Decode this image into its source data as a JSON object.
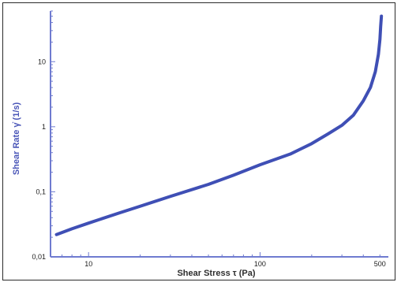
{
  "chart_data": {
    "type": "line",
    "title": "",
    "xlabel": "Shear  Stress τ (Pa)",
    "ylabel": "Shear Rate γ̇ (1/s)",
    "x_scale": "log",
    "y_scale": "log",
    "xlim": [
      6,
      560
    ],
    "ylim": [
      0.01,
      60
    ],
    "x_ticks": [
      {
        "value": 10,
        "label": "10"
      },
      {
        "value": 100,
        "label": "100"
      },
      {
        "value": 500,
        "label": "500"
      }
    ],
    "y_ticks": [
      {
        "value": 0.01,
        "label": "0,01"
      },
      {
        "value": 0.1,
        "label": "0,1"
      },
      {
        "value": 1,
        "label": "1"
      },
      {
        "value": 10,
        "label": "10"
      }
    ],
    "grid": false,
    "legend": "none",
    "colors": {
      "line": "#3f4fb5",
      "axis": "#6f7bd0",
      "ylabel": "#4a56b8"
    },
    "series": [
      {
        "x": [
          6.5,
          8,
          10,
          15,
          20,
          30,
          50,
          70,
          100,
          150,
          200,
          250,
          300,
          350,
          400,
          440,
          470,
          490,
          500,
          505,
          510
        ],
        "y": [
          0.022,
          0.027,
          0.033,
          0.047,
          0.06,
          0.085,
          0.13,
          0.18,
          0.26,
          0.38,
          0.55,
          0.78,
          1.05,
          1.5,
          2.5,
          4.0,
          7.0,
          13,
          22,
          35,
          50
        ]
      }
    ]
  }
}
